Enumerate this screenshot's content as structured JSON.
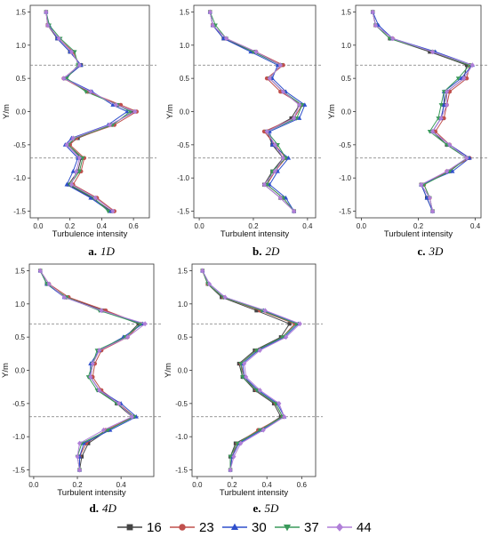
{
  "chart_data": [
    {
      "type": "line",
      "caption_letter": "a.",
      "caption_text": "1D",
      "xlabel": "Turbulence intensity",
      "ylabel": "Y/m",
      "xlim": [
        -0.05,
        0.7
      ],
      "ylim": [
        -1.6,
        1.6
      ],
      "xticks": [
        "0.0",
        "0.2",
        "0.4",
        "0.6"
      ],
      "yticks": [
        "-1.5",
        "-1.0",
        "-0.5",
        "0.0",
        "0.5",
        "1.0",
        "1.5"
      ],
      "ref_lines_y": [
        0.7,
        -0.7
      ],
      "y": [
        1.5,
        1.3,
        1.1,
        0.9,
        0.7,
        0.5,
        0.3,
        0.1,
        0.0,
        -0.2,
        -0.4,
        -0.5,
        -0.7,
        -0.9,
        -1.1,
        -1.3,
        -1.5
      ],
      "series": [
        {
          "name": "16",
          "x": [
            0.05,
            0.06,
            0.12,
            0.2,
            0.27,
            0.17,
            0.32,
            0.5,
            0.6,
            0.46,
            0.25,
            0.19,
            0.27,
            0.25,
            0.19,
            0.34,
            0.46
          ]
        },
        {
          "name": "23",
          "x": [
            0.05,
            0.06,
            0.13,
            0.22,
            0.26,
            0.16,
            0.31,
            0.52,
            0.62,
            0.48,
            0.24,
            0.2,
            0.29,
            0.27,
            0.22,
            0.37,
            0.48
          ]
        },
        {
          "name": "30",
          "x": [
            0.05,
            0.07,
            0.12,
            0.2,
            0.27,
            0.17,
            0.34,
            0.47,
            0.56,
            0.44,
            0.21,
            0.17,
            0.25,
            0.22,
            0.18,
            0.33,
            0.45
          ]
        },
        {
          "name": "37",
          "x": [
            0.05,
            0.07,
            0.14,
            0.23,
            0.25,
            0.18,
            0.3,
            0.5,
            0.58,
            0.47,
            0.23,
            0.19,
            0.28,
            0.26,
            0.2,
            0.35,
            0.44
          ]
        },
        {
          "name": "44",
          "x": [
            0.05,
            0.06,
            0.13,
            0.21,
            0.26,
            0.16,
            0.33,
            0.49,
            0.61,
            0.45,
            0.22,
            0.18,
            0.26,
            0.24,
            0.21,
            0.36,
            0.47
          ]
        }
      ]
    },
    {
      "type": "line",
      "caption_letter": "b.",
      "caption_text": "2D",
      "xlabel": "Turbulent intensity",
      "ylabel": "Y/m",
      "xlim": [
        -0.02,
        0.43
      ],
      "ylim": [
        -1.6,
        1.6
      ],
      "xticks": [
        "0.0",
        "0.2",
        "0.4"
      ],
      "yticks": [
        "-1.5",
        "-1.0",
        "-0.5",
        "0.0",
        "0.5",
        "1.0",
        "1.5"
      ],
      "ref_lines_y": [
        0.7,
        -0.7
      ],
      "y": [
        1.5,
        1.3,
        1.1,
        0.9,
        0.7,
        0.5,
        0.3,
        0.1,
        -0.1,
        -0.3,
        -0.5,
        -0.7,
        -0.9,
        -1.1,
        -1.3,
        -1.5
      ],
      "series": [
        {
          "name": "16",
          "x": [
            0.04,
            0.05,
            0.09,
            0.2,
            0.3,
            0.26,
            0.31,
            0.37,
            0.34,
            0.25,
            0.27,
            0.31,
            0.27,
            0.24,
            0.3,
            0.35
          ]
        },
        {
          "name": "23",
          "x": [
            0.04,
            0.05,
            0.1,
            0.21,
            0.31,
            0.25,
            0.3,
            0.38,
            0.35,
            0.24,
            0.28,
            0.32,
            0.28,
            0.25,
            0.31,
            0.35
          ]
        },
        {
          "name": "30",
          "x": [
            0.04,
            0.05,
            0.09,
            0.19,
            0.29,
            0.27,
            0.32,
            0.39,
            0.37,
            0.26,
            0.27,
            0.33,
            0.29,
            0.26,
            0.32,
            0.35
          ]
        },
        {
          "name": "37",
          "x": [
            0.04,
            0.06,
            0.1,
            0.2,
            0.3,
            0.26,
            0.31,
            0.38,
            0.36,
            0.25,
            0.29,
            0.32,
            0.27,
            0.25,
            0.31,
            0.35
          ]
        },
        {
          "name": "44",
          "x": [
            0.04,
            0.05,
            0.1,
            0.21,
            0.3,
            0.26,
            0.31,
            0.37,
            0.35,
            0.25,
            0.28,
            0.31,
            0.28,
            0.24,
            0.3,
            0.35
          ]
        }
      ]
    },
    {
      "type": "line",
      "caption_letter": "c.",
      "caption_text": "3D",
      "xlabel": "Turbulent intensity",
      "ylabel": "Y/m",
      "xlim": [
        -0.02,
        0.42
      ],
      "ylim": [
        -1.6,
        1.6
      ],
      "xticks": [
        "0.0",
        "0.2",
        "0.4"
      ],
      "yticks": [
        "-1.5",
        "-1.0",
        "-0.5",
        "0.0",
        "0.5",
        "1.0",
        "1.5"
      ],
      "ref_lines_y": [
        0.7,
        -0.7
      ],
      "y": [
        1.5,
        1.3,
        1.1,
        0.9,
        0.7,
        0.5,
        0.3,
        0.1,
        -0.1,
        -0.3,
        -0.5,
        -0.7,
        -0.9,
        -1.1,
        -1.3,
        -1.5
      ],
      "series": [
        {
          "name": "16",
          "x": [
            0.04,
            0.05,
            0.1,
            0.24,
            0.37,
            0.36,
            0.3,
            0.29,
            0.28,
            0.25,
            0.3,
            0.37,
            0.31,
            0.21,
            0.23,
            0.25
          ]
        },
        {
          "name": "23",
          "x": [
            0.04,
            0.05,
            0.11,
            0.25,
            0.38,
            0.37,
            0.31,
            0.3,
            0.29,
            0.26,
            0.31,
            0.38,
            0.3,
            0.22,
            0.24,
            0.25
          ]
        },
        {
          "name": "30",
          "x": [
            0.04,
            0.06,
            0.11,
            0.26,
            0.39,
            0.35,
            0.29,
            0.29,
            0.28,
            0.25,
            0.31,
            0.38,
            0.32,
            0.21,
            0.23,
            0.25
          ]
        },
        {
          "name": "37",
          "x": [
            0.04,
            0.05,
            0.1,
            0.25,
            0.38,
            0.34,
            0.29,
            0.28,
            0.27,
            0.24,
            0.3,
            0.37,
            0.31,
            0.22,
            0.24,
            0.25
          ]
        },
        {
          "name": "44",
          "x": [
            0.04,
            0.05,
            0.11,
            0.25,
            0.39,
            0.36,
            0.3,
            0.3,
            0.28,
            0.25,
            0.31,
            0.37,
            0.3,
            0.21,
            0.24,
            0.25
          ]
        }
      ]
    },
    {
      "type": "line",
      "caption_letter": "d.",
      "caption_text": "4D",
      "xlabel": "Turbulent intensity",
      "ylabel": "Y/m",
      "xlim": [
        -0.02,
        0.55
      ],
      "ylim": [
        -1.6,
        1.6
      ],
      "xticks": [
        "0.0",
        "0.2",
        "0.4"
      ],
      "yticks": [
        "-1.5",
        "-1.0",
        "-0.5",
        "0.0",
        "0.5",
        "1.0",
        "1.5"
      ],
      "ref_lines_y": [
        0.7,
        -0.7
      ],
      "y": [
        1.5,
        1.3,
        1.1,
        0.9,
        0.7,
        0.5,
        0.3,
        0.1,
        -0.1,
        -0.3,
        -0.5,
        -0.7,
        -0.9,
        -1.1,
        -1.3,
        -1.5
      ],
      "series": [
        {
          "name": "16",
          "x": [
            0.03,
            0.06,
            0.15,
            0.32,
            0.48,
            0.42,
            0.3,
            0.27,
            0.26,
            0.3,
            0.38,
            0.45,
            0.34,
            0.25,
            0.22,
            0.21
          ]
        },
        {
          "name": "23",
          "x": [
            0.03,
            0.07,
            0.16,
            0.33,
            0.49,
            0.43,
            0.31,
            0.28,
            0.27,
            0.31,
            0.39,
            0.46,
            0.33,
            0.24,
            0.21,
            0.21
          ]
        },
        {
          "name": "30",
          "x": [
            0.03,
            0.06,
            0.14,
            0.31,
            0.5,
            0.41,
            0.3,
            0.26,
            0.26,
            0.3,
            0.4,
            0.47,
            0.35,
            0.23,
            0.21,
            0.21
          ]
        },
        {
          "name": "37",
          "x": [
            0.03,
            0.06,
            0.15,
            0.3,
            0.49,
            0.42,
            0.29,
            0.27,
            0.25,
            0.29,
            0.38,
            0.46,
            0.34,
            0.22,
            0.2,
            0.21
          ]
        },
        {
          "name": "44",
          "x": [
            0.03,
            0.07,
            0.14,
            0.31,
            0.51,
            0.43,
            0.3,
            0.27,
            0.26,
            0.3,
            0.39,
            0.45,
            0.32,
            0.21,
            0.2,
            0.21
          ]
        }
      ]
    },
    {
      "type": "line",
      "caption_letter": "e.",
      "caption_text": "5D",
      "xlabel": "Turbulent intensity",
      "ylabel": "Y/m",
      "xlim": [
        -0.03,
        0.68
      ],
      "ylim": [
        -1.6,
        1.6
      ],
      "xticks": [
        "0.0",
        "0.2",
        "0.4",
        "0.6"
      ],
      "yticks": [
        "-1.5",
        "-1.0",
        "-0.5",
        "0.0",
        "0.5",
        "1.0",
        "1.5"
      ],
      "ref_lines_y": [
        0.7,
        -0.7
      ],
      "y": [
        1.5,
        1.3,
        1.1,
        0.9,
        0.7,
        0.5,
        0.3,
        0.1,
        -0.1,
        -0.3,
        -0.5,
        -0.7,
        -0.9,
        -1.1,
        -1.3,
        -1.5
      ],
      "series": [
        {
          "name": "16",
          "x": [
            0.03,
            0.06,
            0.14,
            0.34,
            0.53,
            0.48,
            0.33,
            0.24,
            0.26,
            0.33,
            0.44,
            0.48,
            0.36,
            0.22,
            0.19,
            0.19
          ]
        },
        {
          "name": "23",
          "x": [
            0.03,
            0.06,
            0.15,
            0.36,
            0.56,
            0.49,
            0.34,
            0.25,
            0.27,
            0.34,
            0.45,
            0.49,
            0.35,
            0.23,
            0.2,
            0.19
          ]
        },
        {
          "name": "30",
          "x": [
            0.03,
            0.07,
            0.16,
            0.38,
            0.58,
            0.5,
            0.35,
            0.26,
            0.27,
            0.35,
            0.46,
            0.5,
            0.37,
            0.24,
            0.2,
            0.19
          ]
        },
        {
          "name": "37",
          "x": [
            0.03,
            0.06,
            0.15,
            0.37,
            0.57,
            0.49,
            0.34,
            0.25,
            0.26,
            0.34,
            0.45,
            0.49,
            0.36,
            0.23,
            0.19,
            0.19
          ]
        },
        {
          "name": "44",
          "x": [
            0.03,
            0.07,
            0.16,
            0.39,
            0.59,
            0.51,
            0.36,
            0.27,
            0.28,
            0.36,
            0.47,
            0.5,
            0.38,
            0.25,
            0.21,
            0.19
          ]
        }
      ]
    }
  ],
  "legend": {
    "items": [
      {
        "label": "16",
        "color": "#444444",
        "marker": "square"
      },
      {
        "label": "23",
        "color": "#c0504d",
        "marker": "circle"
      },
      {
        "label": "30",
        "color": "#2e4fcc",
        "marker": "triangle-up"
      },
      {
        "label": "37",
        "color": "#3a9a5b",
        "marker": "triangle-down"
      },
      {
        "label": "44",
        "color": "#b07fd8",
        "marker": "diamond"
      }
    ]
  }
}
